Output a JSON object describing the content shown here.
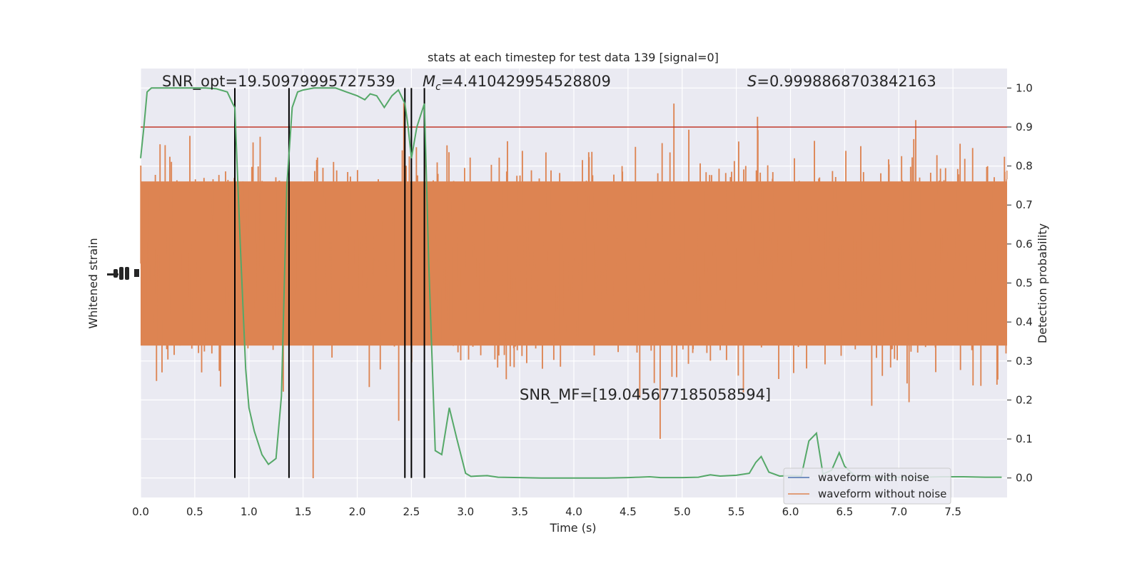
{
  "chart_data": {
    "type": "line",
    "title": "stats at each timestep for test data 139 [signal=0]",
    "xlabel": "Time (s)",
    "ylabel_left": "Whitened strain",
    "ylabel_right": "Detection probability",
    "xlim": [
      0.0,
      8.0
    ],
    "ylim_right": [
      -0.05,
      1.05
    ],
    "x_ticks": [
      "0.0",
      "0.5",
      "1.0",
      "1.5",
      "2.0",
      "2.5",
      "3.0",
      "3.5",
      "4.0",
      "4.5",
      "5.0",
      "5.5",
      "6.0",
      "6.5",
      "7.0",
      "7.5"
    ],
    "right_y_ticks": [
      "0.0",
      "0.1",
      "0.2",
      "0.3",
      "0.4",
      "0.5",
      "0.6",
      "0.7",
      "0.8",
      "0.9",
      "1.0"
    ],
    "grid": true,
    "legend_position": "lower-right",
    "annotations": {
      "snr_opt": "SNR_opt=19.50979995727539",
      "mc_symbol": "M",
      "mc_subscript": "c",
      "mc_value": "=4.410429954528809",
      "s_symbol": "S",
      "s_value": "=0.9998868703842163",
      "snr_mf": "SNR_MF=[19.045677185058594]"
    },
    "threshold": 0.9,
    "threshold_color": "#c0392b",
    "vertical_lines_x": [
      0.87,
      1.37,
      2.44,
      2.5,
      2.62
    ],
    "series": [
      {
        "name": "waveform with noise",
        "color": "#4c72b0"
      },
      {
        "name": "waveform without noise",
        "color": "#dd8452"
      }
    ],
    "detection_probability": {
      "color": "#55a868",
      "x": [
        0.0,
        0.03,
        0.06,
        0.1,
        0.15,
        0.2,
        0.3,
        0.4,
        0.5,
        0.6,
        0.7,
        0.8,
        0.85,
        0.87,
        0.92,
        0.97,
        1.0,
        1.05,
        1.12,
        1.18,
        1.25,
        1.3,
        1.35,
        1.4,
        1.45,
        1.5,
        1.6,
        1.7,
        1.8,
        1.9,
        2.0,
        2.07,
        2.12,
        2.18,
        2.25,
        2.32,
        2.38,
        2.44,
        2.47,
        2.5,
        2.55,
        2.62,
        2.66,
        2.72,
        2.78,
        2.85,
        2.92,
        3.0,
        3.05,
        3.1,
        3.2,
        3.3,
        3.5,
        3.7,
        4.0,
        4.3,
        4.5,
        4.6,
        4.7,
        4.8,
        5.0,
        5.15,
        5.2,
        5.26,
        5.35,
        5.5,
        5.62,
        5.68,
        5.73,
        5.8,
        5.9,
        6.0,
        6.1,
        6.17,
        6.24,
        6.3,
        6.38,
        6.45,
        6.5,
        6.6,
        6.7,
        6.8,
        7.0,
        7.2,
        7.4,
        7.6,
        7.8,
        7.95
      ],
      "y": [
        0.82,
        0.9,
        0.99,
        1.0,
        1.0,
        1.0,
        1.0,
        1.0,
        1.0,
        1.0,
        0.998,
        0.99,
        0.96,
        0.95,
        0.6,
        0.28,
        0.18,
        0.12,
        0.06,
        0.035,
        0.05,
        0.21,
        0.75,
        0.95,
        0.99,
        0.995,
        1.0,
        1.0,
        1.0,
        0.99,
        0.98,
        0.97,
        0.985,
        0.98,
        0.95,
        0.98,
        0.995,
        0.96,
        0.9,
        0.82,
        0.9,
        0.96,
        0.55,
        0.07,
        0.06,
        0.18,
        0.1,
        0.012,
        0.004,
        0.005,
        0.006,
        0.002,
        0.001,
        0.0,
        0.0,
        0.0,
        0.001,
        0.002,
        0.003,
        0.001,
        0.001,
        0.002,
        0.005,
        0.008,
        0.005,
        0.007,
        0.012,
        0.04,
        0.055,
        0.015,
        0.005,
        0.006,
        0.005,
        0.095,
        0.115,
        0.01,
        0.02,
        0.065,
        0.03,
        0.004,
        0.003,
        0.002,
        0.002,
        0.002,
        0.003,
        0.003,
        0.002,
        0.002
      ]
    }
  }
}
